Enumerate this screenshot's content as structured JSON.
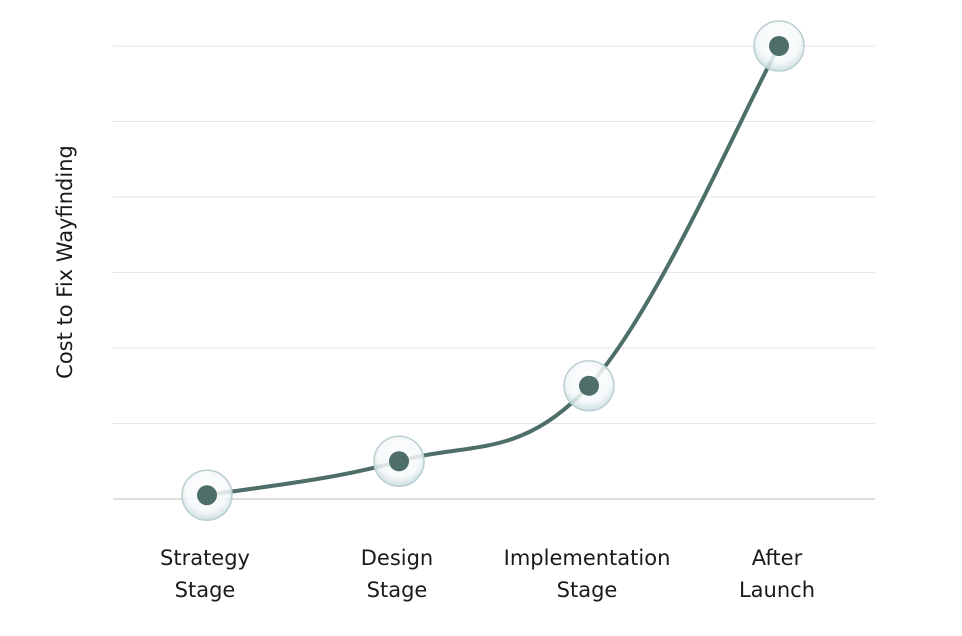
{
  "chart_data": {
    "type": "line",
    "title": "",
    "xlabel": "",
    "ylabel": "Cost to Fix Wayfinding",
    "categories": [
      [
        "Strategy",
        "Stage"
      ],
      [
        "Design",
        "Stage"
      ],
      [
        "Implementation",
        "Stage"
      ],
      [
        "After",
        "Launch"
      ]
    ],
    "series": [
      {
        "values": [
          0.5,
          5,
          15,
          60
        ]
      }
    ],
    "ylim": [
      0,
      60
    ],
    "y_gridlines": [
      0,
      10,
      20,
      30,
      40,
      50,
      60
    ],
    "grid": true,
    "legend": "none",
    "colors": {
      "line": "#4d6e69",
      "marker": "#4d6e69",
      "bubble_edge": "#b9cfd1"
    }
  }
}
